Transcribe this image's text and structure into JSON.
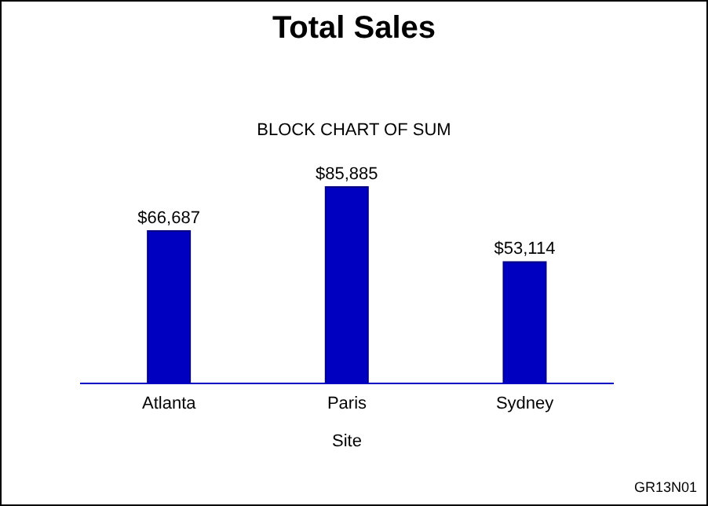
{
  "chart_data": {
    "type": "bar",
    "title": "Total Sales",
    "subtitle": "BLOCK CHART OF SUM",
    "xlabel": "Site",
    "categories": [
      "Atlanta",
      "Paris",
      "Sydney"
    ],
    "values": [
      66687,
      85885,
      53114
    ],
    "value_labels": [
      "$66,687",
      "$85,885",
      "$53,114"
    ],
    "color": "#0000c0",
    "annotations": [
      "GR13N01"
    ]
  }
}
